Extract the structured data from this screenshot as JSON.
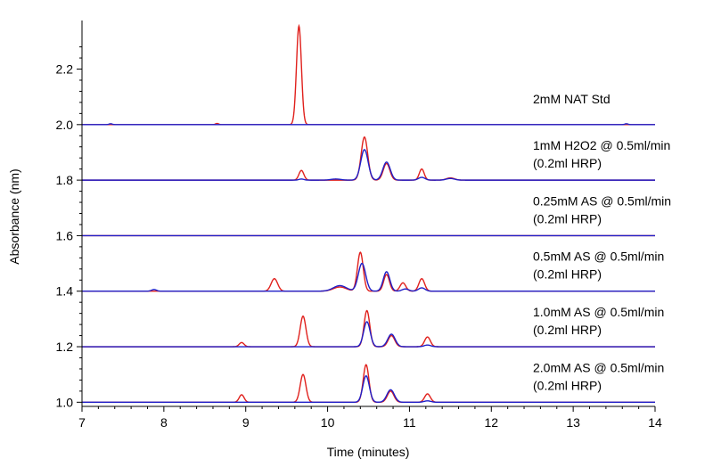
{
  "chart_data": {
    "type": "line",
    "title": "",
    "xlabel": "Time (minutes)",
    "ylabel": "Absorbance (nm)",
    "xlim": [
      7,
      14
    ],
    "ylim": [
      0.985,
      2.375
    ],
    "x_ticks": [
      7,
      8,
      9,
      10,
      11,
      12,
      13,
      14
    ],
    "y_ticks": [
      1.0,
      1.2,
      1.4,
      1.6,
      1.8,
      2.0,
      2.2
    ],
    "x_tick_labels": [
      "7",
      "8",
      "9",
      "10",
      "11",
      "12",
      "13",
      "14"
    ],
    "y_tick_labels": [
      "1.0",
      "1.2",
      "1.4",
      "1.6",
      "1.8",
      "2.0",
      "2.2"
    ],
    "grid": false,
    "colors": {
      "red_series": "#e0201c",
      "blue_series": "#1f1fc8",
      "axis": "#000000"
    },
    "traces": [
      {
        "label_lines": [
          "2mM NAT Std"
        ],
        "baseline": 2.0,
        "red_peaks": [
          [
            8.65,
            0.004,
            0.02
          ],
          [
            9.65,
            0.355,
            0.03
          ]
        ],
        "blue_peaks": [
          [
            7.35,
            0.003,
            0.02
          ],
          [
            13.65,
            0.003,
            0.02
          ]
        ]
      },
      {
        "label_lines": [
          "1mM H2O2 @ 0.5ml/min",
          "(0.2ml HRP)"
        ],
        "baseline": 1.8,
        "red_peaks": [
          [
            9.68,
            0.035,
            0.03
          ],
          [
            10.45,
            0.155,
            0.04
          ],
          [
            10.72,
            0.06,
            0.04
          ],
          [
            11.15,
            0.04,
            0.03
          ],
          [
            11.5,
            0.008,
            0.05
          ]
        ],
        "blue_peaks": [
          [
            9.68,
            0.004,
            0.03
          ],
          [
            10.1,
            0.004,
            0.06
          ],
          [
            10.45,
            0.11,
            0.045
          ],
          [
            10.72,
            0.065,
            0.045
          ],
          [
            11.15,
            0.01,
            0.04
          ],
          [
            11.5,
            0.006,
            0.05
          ]
        ]
      },
      {
        "label_lines": [
          "0.25mM AS @ 0.5ml/min",
          "(0.2ml HRP)"
        ],
        "baseline": 1.6,
        "red_peaks": [],
        "blue_peaks": []
      },
      {
        "label_lines": [
          "0.5mM AS @ 0.5ml/min",
          "(0.2ml HRP)"
        ],
        "baseline": 1.4,
        "red_peaks": [
          [
            9.35,
            0.045,
            0.04
          ],
          [
            10.15,
            0.015,
            0.08
          ],
          [
            10.4,
            0.14,
            0.035
          ],
          [
            10.72,
            0.06,
            0.035
          ],
          [
            10.92,
            0.03,
            0.035
          ],
          [
            11.15,
            0.045,
            0.035
          ]
        ],
        "blue_peaks": [
          [
            7.88,
            0.006,
            0.03
          ],
          [
            10.15,
            0.02,
            0.08
          ],
          [
            10.42,
            0.1,
            0.045
          ],
          [
            10.72,
            0.07,
            0.04
          ],
          [
            10.95,
            0.008,
            0.04
          ],
          [
            11.15,
            0.012,
            0.04
          ]
        ]
      },
      {
        "label_lines": [
          "1.0mM AS @ 0.5ml/min",
          "(0.2ml HRP)"
        ],
        "baseline": 1.2,
        "red_peaks": [
          [
            8.95,
            0.015,
            0.03
          ],
          [
            9.7,
            0.11,
            0.035
          ],
          [
            10.48,
            0.13,
            0.035
          ],
          [
            10.78,
            0.04,
            0.04
          ],
          [
            11.22,
            0.035,
            0.035
          ]
        ],
        "blue_peaks": [
          [
            10.48,
            0.09,
            0.04
          ],
          [
            10.78,
            0.045,
            0.045
          ],
          [
            11.22,
            0.006,
            0.04
          ]
        ]
      },
      {
        "label_lines": [
          "2.0mM AS @ 0.5ml/min",
          "(0.2ml HRP)"
        ],
        "baseline": 1.0,
        "red_peaks": [
          [
            8.95,
            0.027,
            0.03
          ],
          [
            9.7,
            0.1,
            0.035
          ],
          [
            10.47,
            0.135,
            0.035
          ],
          [
            10.77,
            0.04,
            0.04
          ],
          [
            11.22,
            0.03,
            0.035
          ]
        ],
        "blue_peaks": [
          [
            10.47,
            0.095,
            0.04
          ],
          [
            10.77,
            0.045,
            0.045
          ],
          [
            11.22,
            0.005,
            0.04
          ]
        ]
      }
    ]
  }
}
